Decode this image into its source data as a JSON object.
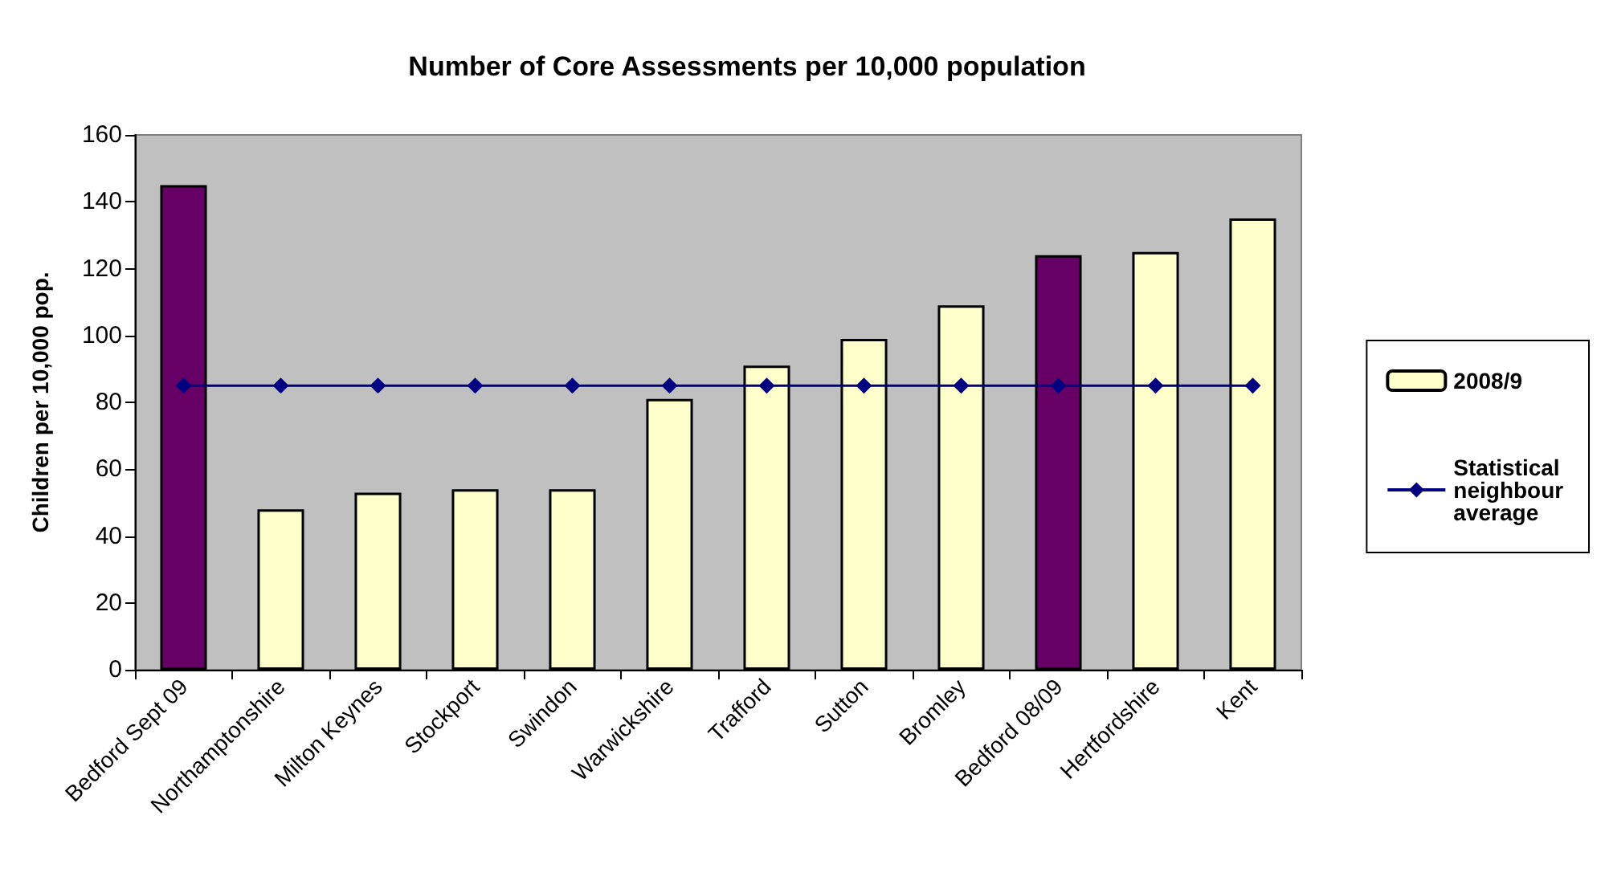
{
  "chart_data": {
    "type": "bar",
    "title": "Number of Core Assessments per 10,000 population",
    "ylabel": "Children per 10,000 pop.",
    "categories": [
      "Bedford Sept 09",
      "Northamptonshire",
      "Milton Keynes",
      "Stockport",
      "Swindon",
      "Warwickshire",
      "Trafford",
      "Sutton",
      "Bromley",
      "Bedford 08/09",
      "Hertfordshire",
      "Kent"
    ],
    "series": [
      {
        "name": "2008/9",
        "color": "#ffffcc",
        "colors": [
          "#660066",
          "#ffffcc",
          "#ffffcc",
          "#ffffcc",
          "#ffffcc",
          "#ffffcc",
          "#ffffcc",
          "#ffffcc",
          "#ffffcc",
          "#660066",
          "#ffffcc",
          "#ffffcc"
        ],
        "values": [
          145,
          48,
          53,
          54,
          54,
          81,
          91,
          99,
          109,
          124,
          125,
          135
        ]
      },
      {
        "name": "Statistical neighbour average",
        "type": "line",
        "color": "#000080",
        "marker": "diamond",
        "values": [
          85,
          85,
          85,
          85,
          85,
          85,
          85,
          85,
          85,
          85,
          85,
          85
        ]
      }
    ],
    "ylim": [
      0,
      160
    ],
    "yticks": [
      0,
      20,
      40,
      60,
      80,
      100,
      120,
      140,
      160
    ],
    "grid": false,
    "legend": "right"
  }
}
